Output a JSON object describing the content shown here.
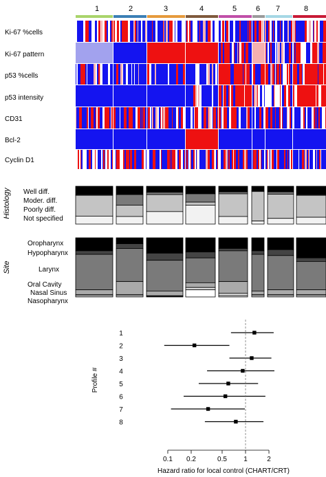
{
  "profiles": {
    "labels": [
      "1",
      "2",
      "3",
      "4",
      "5",
      "6",
      "7",
      "8"
    ],
    "colors": [
      "#a9d46b",
      "#3b7fb5",
      "#e69a3c",
      "#7f5a3c",
      "#c04fa8",
      "#9a9a9a",
      "#a6d8e5",
      "#c81a36"
    ]
  },
  "heatmap": {
    "rows": [
      "Ki-67 %cells",
      "Ki-67 pattern",
      "p53 %cells",
      "p53 intensity",
      "CD31",
      "Bcl-2",
      "Cyclin D1"
    ],
    "palette": {
      "low": "#1414f0",
      "high": "#ee1111",
      "mid_low": "#a2a2ee",
      "mid_high": "#f5b0b0",
      "neutral": "#ffffff"
    }
  },
  "histology": {
    "section_label": "Histology",
    "categories": [
      "Well diff.",
      "Moder. diff.",
      "Poorly diff.",
      "Not specified"
    ],
    "shades": [
      "#000000",
      "#7a7a7a",
      "#c4c4c4",
      "#f2f2f2"
    ]
  },
  "site": {
    "section_label": "Site",
    "categories": [
      "Oropharynx",
      "Hypopharynx",
      "Larynx",
      "Oral Cavity",
      "Nasal Sinus",
      "Nasopharynx"
    ],
    "shades": [
      "#000000",
      "#444444",
      "#7a7a7a",
      "#aaaaaa",
      "#dadada",
      "#ffffff"
    ]
  },
  "chart_data": {
    "type": "forest",
    "ylabel": "Profile #",
    "xlabel": "Hazard ratio for local control (CHART/CRT)",
    "xscale": "log",
    "xlim": [
      0.08,
      2.5
    ],
    "xticks": [
      0.1,
      0.2,
      0.5,
      1,
      2
    ],
    "xtick_labels": [
      "0.1",
      "0.2",
      "0.5",
      "1",
      "2"
    ],
    "reference_line": 1,
    "rows": [
      {
        "profile": "1",
        "hr": 1.3,
        "lo": 0.65,
        "hi": 2.3
      },
      {
        "profile": "2",
        "hr": 0.22,
        "lo": 0.09,
        "hi": 0.62
      },
      {
        "profile": "3",
        "hr": 1.2,
        "lo": 0.62,
        "hi": 2.15
      },
      {
        "profile": "4",
        "hr": 0.92,
        "lo": 0.32,
        "hi": 2.35
      },
      {
        "profile": "5",
        "hr": 0.6,
        "lo": 0.25,
        "hi": 1.45
      },
      {
        "profile": "6",
        "hr": 0.55,
        "lo": 0.16,
        "hi": 1.8
      },
      {
        "profile": "7",
        "hr": 0.33,
        "lo": 0.11,
        "hi": 0.98
      },
      {
        "profile": "8",
        "hr": 0.75,
        "lo": 0.3,
        "hi": 1.7
      }
    ]
  }
}
